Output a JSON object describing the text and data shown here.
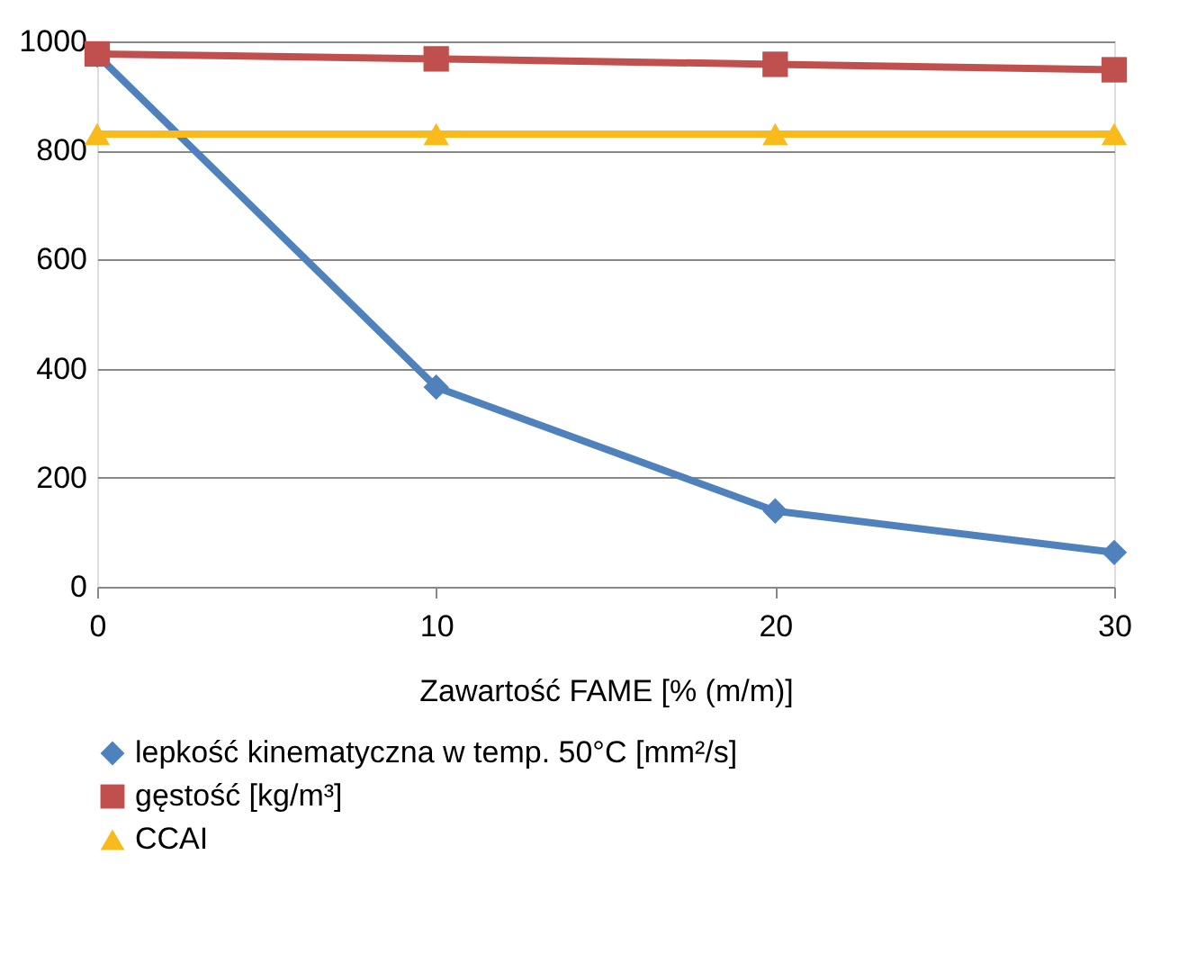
{
  "chart_data": {
    "type": "line",
    "xlabel": "Zawartość FAME [% (m/m)]",
    "x": [
      0,
      10,
      20,
      30
    ],
    "xlim": [
      0,
      30
    ],
    "xticks": [
      0,
      10,
      20,
      30
    ],
    "ylim": [
      0,
      1000
    ],
    "yticks": [
      0,
      200,
      400,
      600,
      800,
      1000
    ],
    "grid": "y",
    "legend": "bottom",
    "line_style": "solid",
    "series": [
      {
        "name": "lepkość kinematyczna w temp. 50°C [mm²/s]",
        "color": "#4f81bd",
        "marker": "diamond",
        "values": [
          975,
          366,
          139,
          63
        ]
      },
      {
        "name": "gęstość [kg/m³]",
        "color": "#c0504d",
        "marker": "square",
        "values": [
          977,
          968,
          958,
          948
        ]
      },
      {
        "name": "CCAI",
        "color": "#f9bb1c",
        "marker": "triangle",
        "values": [
          830,
          830,
          830,
          830
        ]
      }
    ]
  }
}
